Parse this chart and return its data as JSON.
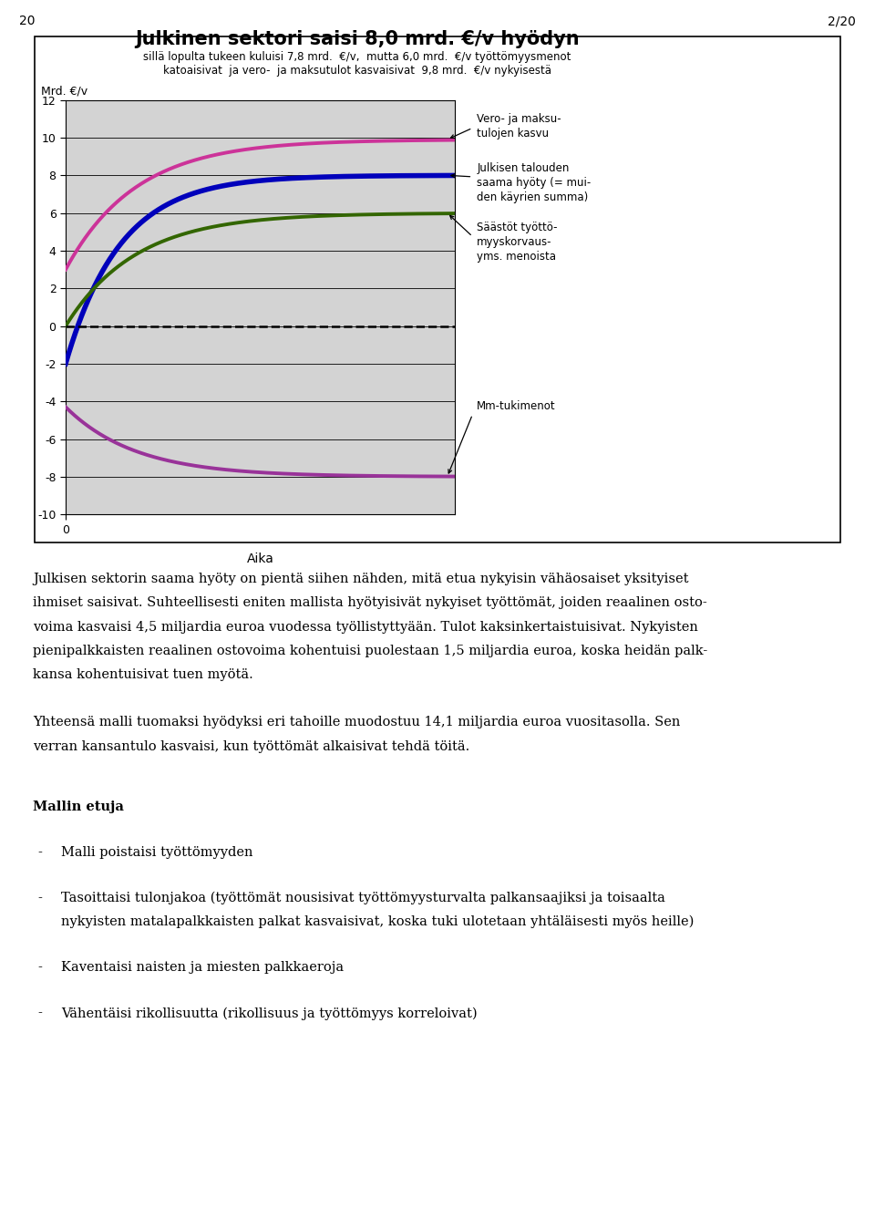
{
  "title_line1": "Julkinen sektori saisi 8,0 mrd. €/v hyödyn",
  "title_line2": "sillä lopulta tukeen kuluisi 7,8 mrd.  €/v,  mutta 6,0 mrd.  €/v työttömyysmenot",
  "title_line3": "katoaisivat  ja vero-  ja maksutulot kasvaisivat  9,8 mrd.  €/v nykyisestä",
  "ylabel": "Mrd. €/v",
  "xlabel": "Aika",
  "ylim": [
    -10,
    12
  ],
  "xlim": [
    0,
    100
  ],
  "yticks": [
    -10,
    -8,
    -6,
    -4,
    -2,
    0,
    2,
    4,
    6,
    8,
    10,
    12
  ],
  "background_color": "#d3d3d3",
  "line_colors": {
    "vero": "#cc3399",
    "julkinen": "#0000bb",
    "saastot": "#336600",
    "mm": "#993399"
  },
  "page_number": "2/20",
  "page_left": "20",
  "body_text_para1": "Julkisen sektorin saama hyöty on pientä siihen nähden, mitä etua nykyisin vähäosaiset yksityiset ihmiset saisivat. Suhteellisesti eniten mallista hyötyisivät nykyiset työttömät, joiden reaalinen osto-voima kasvaisi 4,5 miljardia euroa vuodessa työllistyttyään. Tulot kaksinkertaistuisivat. Nykyisten pienipalkkaisten reaalinen ostovoima kohentuisi puolestaan 1,5 miljardia euroa, koska heidän palk-kansa kohentuisivat tuen myötä.",
  "body_text_para2": "Yhteensä malli tuomaksi hyödyksi eri tahoille muodostuu 14,1 miljardia euroa vuositasolla. Sen verran kansantulo kasvaisi, kun työttömät alkaisivat tehdä töitä.",
  "section_title": "Mallin etuja",
  "bullet_points": [
    "Malli poistaisi työttömyyden",
    "Tasoittaisi tulonjakoa (työttömät nousisivat työttömyysturvalta palkansaajiksi ja toisaalta nykyisten matalapalkkaisten palkat kasvaisivat, koska tuki ulotetaan yhtäläisesti myös heille)",
    "Kaventaisi naisten ja miesten palkkaeroja",
    "Vähentäisi rikollisuutta (rikollisuus ja työttömyys korreloivat)"
  ],
  "ann_vero": "Vero- ja maksu-\ntulojen kasvu",
  "ann_julkinen": "Julkisen talouden\nsaama hyöty (= mui-\nden käyrien summa)",
  "ann_saastot": "Säästöt työttö-\nmyyskorvaus-\nyms. menoista",
  "ann_mm": "Mm-tukimenot"
}
